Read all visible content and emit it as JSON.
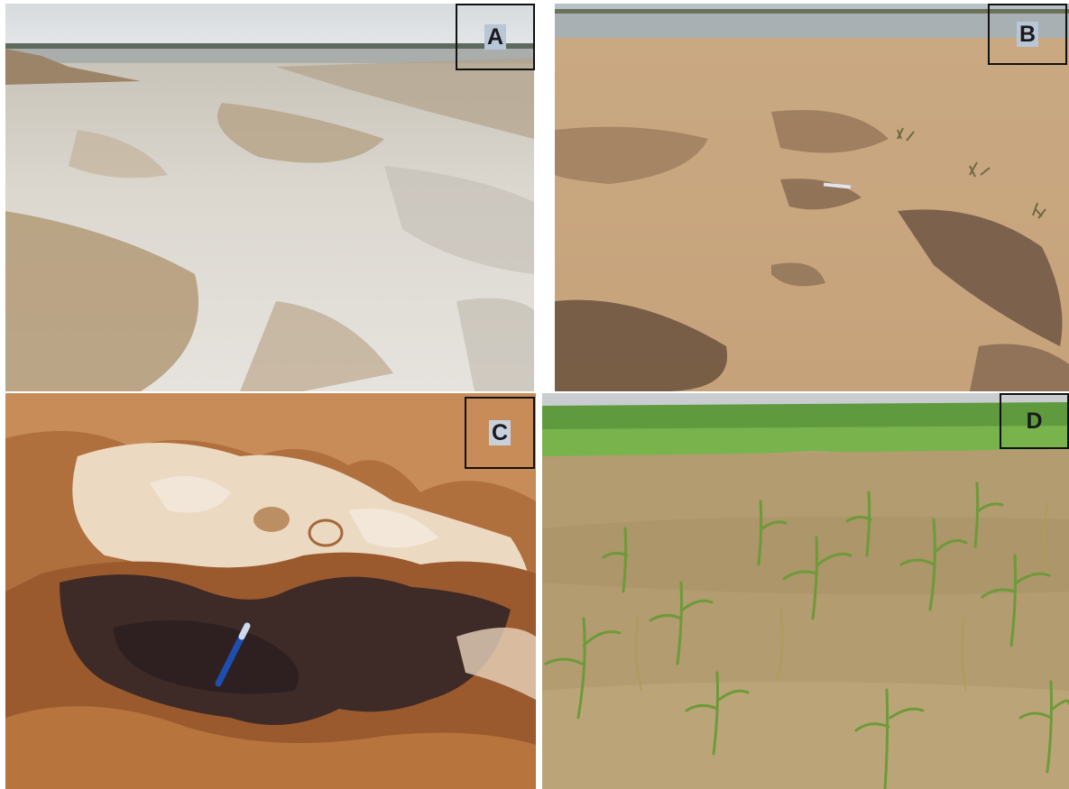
{
  "figure": {
    "panels": [
      {
        "id": "A",
        "label": "A",
        "icon": "salt-crust-flat-photo"
      },
      {
        "id": "B",
        "label": "B",
        "icon": "dry-soil-field-photo"
      },
      {
        "id": "C",
        "label": "C",
        "icon": "soil-surface-closeup-photo"
      },
      {
        "id": "D",
        "label": "D",
        "icon": "sorghum-crop-field-photo"
      }
    ]
  }
}
